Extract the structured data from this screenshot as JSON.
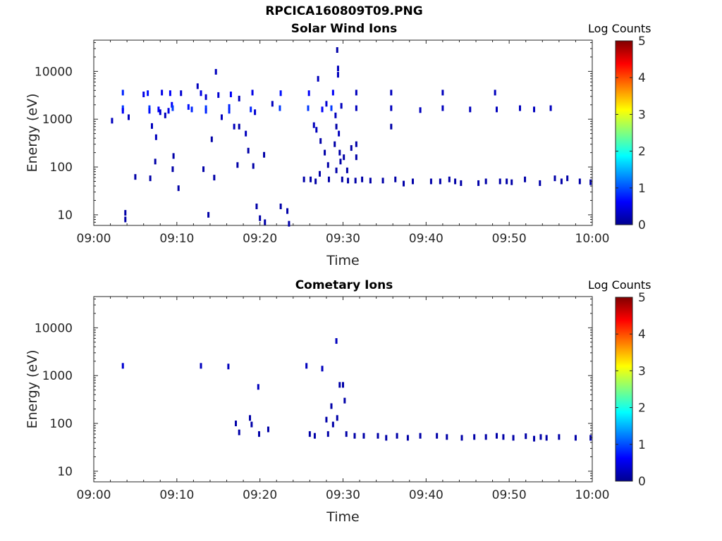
{
  "figure_title": "RPCICA160809T09.PNG",
  "chart_data": [
    {
      "type": "heatmap",
      "title": "Solar Wind Ions",
      "xlabel": "Time",
      "ylabel": "Energy (eV)",
      "x_ticks": [
        "09:00",
        "09:10",
        "09:20",
        "09:30",
        "09:40",
        "09:50",
        "10:00"
      ],
      "x_range_minutes": [
        0,
        60
      ],
      "y_scale": "log",
      "y_range": [
        6,
        45000
      ],
      "y_ticks": [
        "10",
        "100",
        "1000",
        "10000"
      ],
      "colorbar": {
        "label": "Log Counts",
        "range": [
          0,
          5
        ],
        "ticks": [
          "0",
          "1",
          "2",
          "3",
          "4",
          "5"
        ]
      },
      "points": [
        [
          2.2,
          930,
          0.3
        ],
        [
          3.5,
          3600,
          0.8
        ],
        [
          3.5,
          1700,
          0.9
        ],
        [
          3.5,
          1500,
          0.6
        ],
        [
          3.8,
          11,
          0.2
        ],
        [
          3.8,
          8,
          0.2
        ],
        [
          4.2,
          1100,
          0.3
        ],
        [
          5.0,
          62,
          0.2
        ],
        [
          6.0,
          3300,
          0.5
        ],
        [
          6.5,
          3500,
          0.7
        ],
        [
          6.7,
          1700,
          0.9
        ],
        [
          6.7,
          1500,
          0.7
        ],
        [
          6.8,
          58,
          0.2
        ],
        [
          7.0,
          720,
          0.3
        ],
        [
          7.4,
          130,
          0.2
        ],
        [
          7.5,
          420,
          0.3
        ],
        [
          7.8,
          1600,
          0.6
        ],
        [
          8.0,
          1400,
          0.4
        ],
        [
          8.2,
          3600,
          0.5
        ],
        [
          8.6,
          1200,
          0.3
        ],
        [
          9.0,
          1500,
          0.5
        ],
        [
          9.2,
          3500,
          0.6
        ],
        [
          9.4,
          2000,
          0.6
        ],
        [
          9.5,
          1700,
          0.9
        ],
        [
          9.6,
          170,
          0.2
        ],
        [
          9.5,
          90,
          0.2
        ],
        [
          10.2,
          36,
          0.2
        ],
        [
          10.5,
          3500,
          0.4
        ],
        [
          11.4,
          1800,
          0.7
        ],
        [
          11.8,
          1600,
          0.8
        ],
        [
          12.5,
          4900,
          0.3
        ],
        [
          12.9,
          3500,
          0.5
        ],
        [
          13.2,
          90,
          0.2
        ],
        [
          13.5,
          1700,
          0.9
        ],
        [
          13.5,
          1500,
          0.8
        ],
        [
          13.5,
          2900,
          0.4
        ],
        [
          13.8,
          10,
          0.2
        ],
        [
          14.2,
          380,
          0.2
        ],
        [
          14.5,
          60,
          0.2
        ],
        [
          14.7,
          9800,
          0.3
        ],
        [
          15.0,
          3200,
          0.4
        ],
        [
          15.4,
          1100,
          0.3
        ],
        [
          16.3,
          1800,
          0.8
        ],
        [
          16.3,
          1500,
          0.8
        ],
        [
          16.5,
          3300,
          0.6
        ],
        [
          16.9,
          700,
          0.3
        ],
        [
          17.5,
          2700,
          0.3
        ],
        [
          17.5,
          700,
          0.2
        ],
        [
          17.3,
          110,
          0.2
        ],
        [
          18.3,
          500,
          0.3
        ],
        [
          18.6,
          220,
          0.2
        ],
        [
          18.9,
          1600,
          0.8
        ],
        [
          19.1,
          3600,
          0.5
        ],
        [
          19.4,
          1400,
          0.4
        ],
        [
          19.2,
          105,
          0.2
        ],
        [
          19.6,
          15,
          0.2
        ],
        [
          20.0,
          8.5,
          0.2
        ],
        [
          20.5,
          180,
          0.2
        ],
        [
          20.6,
          7,
          0.2
        ],
        [
          21.5,
          2100,
          0.3
        ],
        [
          22.4,
          1700,
          0.9
        ],
        [
          22.5,
          3500,
          0.7
        ],
        [
          22.5,
          15,
          0.2
        ],
        [
          23.3,
          12,
          0.2
        ],
        [
          23.5,
          6.5,
          0.2
        ],
        [
          25.3,
          55,
          0.2
        ],
        [
          25.8,
          1700,
          0.9
        ],
        [
          25.9,
          3500,
          0.6
        ],
        [
          26.1,
          55,
          0.2
        ],
        [
          26.5,
          750,
          0.3
        ],
        [
          26.7,
          50,
          0.2
        ],
        [
          27.0,
          7000,
          0.3
        ],
        [
          26.8,
          600,
          0.3
        ],
        [
          27.3,
          350,
          0.2
        ],
        [
          27.2,
          72,
          0.2
        ],
        [
          27.5,
          1600,
          0.6
        ],
        [
          27.8,
          200,
          0.2
        ],
        [
          28.0,
          2100,
          0.4
        ],
        [
          28.2,
          110,
          0.2
        ],
        [
          28.3,
          55,
          0.2
        ],
        [
          28.6,
          1700,
          0.9
        ],
        [
          28.8,
          3600,
          0.6
        ],
        [
          29.0,
          300,
          0.2
        ],
        [
          29.1,
          1200,
          0.3
        ],
        [
          29.2,
          700,
          0.2
        ],
        [
          29.2,
          85,
          0.2
        ],
        [
          29.3,
          28000,
          0.2
        ],
        [
          29.4,
          11500,
          0.3
        ],
        [
          29.4,
          8500,
          0.3
        ],
        [
          29.5,
          500,
          0.3
        ],
        [
          29.6,
          200,
          0.2
        ],
        [
          29.7,
          130,
          0.2
        ],
        [
          29.8,
          1900,
          0.3
        ],
        [
          29.9,
          55,
          0.2
        ],
        [
          30.1,
          160,
          0.2
        ],
        [
          30.5,
          85,
          0.2
        ],
        [
          30.6,
          52,
          0.2
        ],
        [
          31.0,
          250,
          0.2
        ],
        [
          31.5,
          52,
          0.2
        ],
        [
          31.6,
          3600,
          0.3
        ],
        [
          31.6,
          1700,
          0.3
        ],
        [
          31.6,
          160,
          0.2
        ],
        [
          31.6,
          300,
          0.2
        ],
        [
          32.3,
          55,
          0.2
        ],
        [
          33.3,
          52,
          0.2
        ],
        [
          34.8,
          52,
          0.2
        ],
        [
          35.8,
          3600,
          0.3
        ],
        [
          35.8,
          1700,
          0.3
        ],
        [
          35.8,
          700,
          0.2
        ],
        [
          36.3,
          55,
          0.2
        ],
        [
          37.3,
          45,
          0.2
        ],
        [
          38.4,
          50,
          0.2
        ],
        [
          39.3,
          1550,
          0.3
        ],
        [
          40.6,
          50,
          0.2
        ],
        [
          41.7,
          50,
          0.2
        ],
        [
          42.0,
          3600,
          0.3
        ],
        [
          42.0,
          1700,
          0.3
        ],
        [
          42.8,
          55,
          0.2
        ],
        [
          43.5,
          50,
          0.2
        ],
        [
          44.2,
          46,
          0.2
        ],
        [
          45.3,
          1600,
          0.3
        ],
        [
          46.3,
          46,
          0.2
        ],
        [
          47.2,
          50,
          0.2
        ],
        [
          48.3,
          3600,
          0.3
        ],
        [
          48.5,
          1600,
          0.3
        ],
        [
          48.9,
          50,
          0.2
        ],
        [
          49.7,
          50,
          0.2
        ],
        [
          50.3,
          48,
          0.2
        ],
        [
          51.3,
          1700,
          0.3
        ],
        [
          51.9,
          55,
          0.2
        ],
        [
          53.0,
          1600,
          0.3
        ],
        [
          53.7,
          46,
          0.2
        ],
        [
          55.0,
          1700,
          0.3
        ],
        [
          55.5,
          58,
          0.2
        ],
        [
          56.3,
          50,
          0.2
        ],
        [
          57.0,
          58,
          0.2
        ],
        [
          58.5,
          50,
          0.2
        ],
        [
          59.8,
          48,
          0.2
        ]
      ]
    },
    {
      "type": "heatmap",
      "title": "Cometary Ions",
      "xlabel": "Time",
      "ylabel": "Energy (eV)",
      "x_ticks": [
        "09:00",
        "09:10",
        "09:20",
        "09:30",
        "09:40",
        "09:50",
        "10:00"
      ],
      "x_range_minutes": [
        0,
        60
      ],
      "y_scale": "log",
      "y_range": [
        6,
        45000
      ],
      "y_ticks": [
        "10",
        "100",
        "1000",
        "10000"
      ],
      "colorbar": {
        "label": "Log Counts",
        "range": [
          0,
          5
        ],
        "ticks": [
          "0",
          "1",
          "2",
          "3",
          "4",
          "5"
        ]
      },
      "points": [
        [
          3.5,
          1600,
          0.4
        ],
        [
          12.9,
          1600,
          0.3
        ],
        [
          16.2,
          1550,
          0.3
        ],
        [
          17.1,
          100,
          0.2
        ],
        [
          17.5,
          65,
          0.2
        ],
        [
          18.8,
          130,
          0.2
        ],
        [
          19.0,
          95,
          0.2
        ],
        [
          19.8,
          580,
          0.3
        ],
        [
          19.9,
          60,
          0.2
        ],
        [
          21.0,
          75,
          0.2
        ],
        [
          25.6,
          1600,
          0.3
        ],
        [
          26.0,
          60,
          0.2
        ],
        [
          26.6,
          55,
          0.2
        ],
        [
          27.5,
          1400,
          0.3
        ],
        [
          28.0,
          120,
          0.2
        ],
        [
          28.2,
          60,
          0.2
        ],
        [
          28.6,
          230,
          0.2
        ],
        [
          28.8,
          95,
          0.2
        ],
        [
          29.2,
          5300,
          0.3
        ],
        [
          29.3,
          130,
          0.2
        ],
        [
          29.6,
          640,
          0.2
        ],
        [
          30.0,
          640,
          0.2
        ],
        [
          30.2,
          300,
          0.2
        ],
        [
          30.4,
          60,
          0.2
        ],
        [
          31.4,
          55,
          0.2
        ],
        [
          32.5,
          55,
          0.2
        ],
        [
          34.2,
          55,
          0.2
        ],
        [
          35.2,
          50,
          0.2
        ],
        [
          36.5,
          55,
          0.2
        ],
        [
          37.8,
          50,
          0.2
        ],
        [
          39.3,
          55,
          0.2
        ],
        [
          41.3,
          55,
          0.2
        ],
        [
          42.5,
          52,
          0.2
        ],
        [
          44.3,
          50,
          0.2
        ],
        [
          45.8,
          52,
          0.2
        ],
        [
          47.2,
          52,
          0.2
        ],
        [
          48.5,
          55,
          0.2
        ],
        [
          49.3,
          52,
          0.2
        ],
        [
          50.5,
          50,
          0.2
        ],
        [
          52.0,
          54,
          0.2
        ],
        [
          53.0,
          48,
          0.2
        ],
        [
          53.8,
          52,
          0.2
        ],
        [
          54.5,
          50,
          0.2
        ],
        [
          56.0,
          52,
          0.2
        ],
        [
          58.0,
          50,
          0.2
        ],
        [
          59.8,
          50,
          0.2
        ]
      ]
    }
  ]
}
